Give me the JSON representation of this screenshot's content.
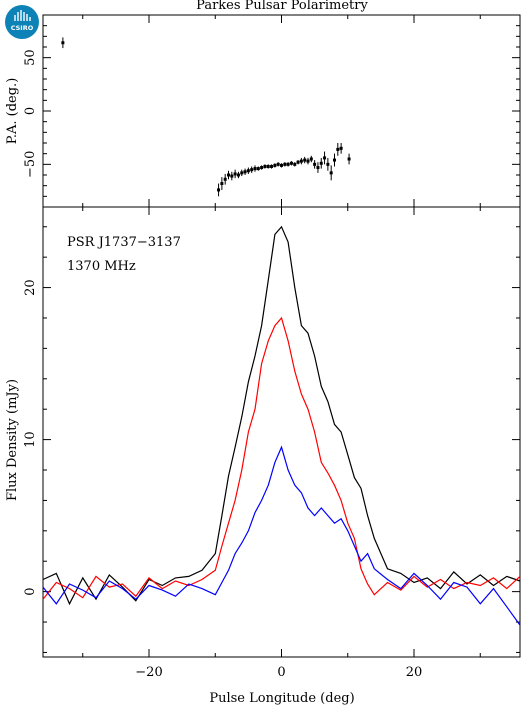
{
  "logo": {
    "text": "CSIRO",
    "color": "#0d82b6"
  },
  "chart_data": [
    {
      "type": "scatter",
      "title": "Parkes Pulsar Polarimetry",
      "ylabel": "P.A. (deg.)",
      "xlim": [
        -36,
        36
      ],
      "ylim": [
        -90,
        90
      ],
      "yticks": [
        -50,
        0,
        50
      ],
      "series": [
        {
          "values": [
            [
              -33.0,
              64,
              5
            ],
            [
              -9.5,
              -74,
              6
            ],
            [
              -9.0,
              -68,
              6
            ],
            [
              -8.5,
              -64,
              5
            ],
            [
              -8.0,
              -60,
              4
            ],
            [
              -7.5,
              -61,
              4
            ],
            [
              -7.0,
              -59,
              4
            ],
            [
              -6.5,
              -60,
              3
            ],
            [
              -6.0,
              -58,
              3
            ],
            [
              -5.5,
              -57,
              3
            ],
            [
              -5.0,
              -56,
              3
            ],
            [
              -4.5,
              -55,
              3
            ],
            [
              -4.0,
              -54,
              3
            ],
            [
              -3.5,
              -54,
              2
            ],
            [
              -3.0,
              -53,
              2
            ],
            [
              -2.5,
              -52,
              2
            ],
            [
              -2.0,
              -52,
              2
            ],
            [
              -1.5,
              -52,
              2
            ],
            [
              -1.0,
              -51,
              2
            ],
            [
              -0.5,
              -50,
              2
            ],
            [
              0.0,
              -51,
              2
            ],
            [
              0.5,
              -50,
              2
            ],
            [
              1.0,
              -50,
              2
            ],
            [
              1.5,
              -49,
              2
            ],
            [
              2.0,
              -50,
              2
            ],
            [
              2.5,
              -48,
              2
            ],
            [
              3.0,
              -47,
              3
            ],
            [
              3.5,
              -46,
              3
            ],
            [
              4.0,
              -47,
              3
            ],
            [
              4.5,
              -45,
              3
            ],
            [
              5.0,
              -50,
              4
            ],
            [
              5.5,
              -53,
              5
            ],
            [
              6.0,
              -49,
              5
            ],
            [
              6.5,
              -44,
              6
            ],
            [
              7.0,
              -50,
              6
            ],
            [
              7.5,
              -58,
              7
            ],
            [
              8.0,
              -46,
              6
            ],
            [
              8.5,
              -36,
              6
            ],
            [
              9.0,
              -35,
              5
            ],
            [
              10.2,
              -45,
              5
            ]
          ]
        }
      ]
    },
    {
      "type": "line",
      "xlabel": "Pulse Longitude (deg)",
      "ylabel": "Flux Density (mJy)",
      "xlim": [
        -36,
        36
      ],
      "ylim": [
        -4.3,
        25.3
      ],
      "xticks": [
        -20,
        0,
        20
      ],
      "yticks": [
        0,
        10,
        20
      ],
      "annotations": [
        "PSR J1737−3137",
        "1370 MHz"
      ],
      "series": [
        {
          "color": "#000000",
          "x": [
            -36,
            -34,
            -32,
            -30,
            -28,
            -26,
            -24,
            -22,
            -20,
            -18,
            -16,
            -14,
            -12,
            -10,
            -9,
            -8,
            -7,
            -6,
            -5,
            -4,
            -3,
            -2,
            -1,
            0,
            1,
            2,
            3,
            4,
            5,
            6,
            7,
            8,
            9,
            10,
            11,
            12,
            13,
            14,
            16,
            18,
            20,
            22,
            24,
            26,
            28,
            30,
            32,
            34,
            36
          ],
          "values": [
            0.8,
            1.2,
            -0.8,
            0.9,
            -0.5,
            1.1,
            0.3,
            -0.6,
            0.8,
            0.4,
            0.9,
            1.0,
            1.4,
            2.5,
            5.0,
            7.6,
            9.5,
            11.5,
            13.8,
            15.5,
            17.5,
            20.5,
            23.5,
            24.0,
            23.0,
            20.0,
            17.5,
            17.0,
            15.5,
            13.5,
            12.5,
            11.0,
            10.5,
            9.0,
            7.5,
            6.8,
            5.0,
            3.5,
            1.5,
            1.2,
            0.6,
            0.9,
            0.2,
            1.3,
            0.5,
            1.1,
            0.4,
            1.0,
            0.7
          ]
        },
        {
          "color": "#ff0000",
          "x": [
            -36,
            -34,
            -32,
            -30,
            -28,
            -26,
            -24,
            -22,
            -20,
            -18,
            -16,
            -14,
            -12,
            -10,
            -9,
            -8,
            -7,
            -6,
            -5,
            -4,
            -3,
            -2,
            -1,
            0,
            1,
            2,
            3,
            4,
            5,
            6,
            7,
            8,
            9,
            10,
            11,
            12,
            13,
            14,
            16,
            18,
            20,
            22,
            24,
            26,
            28,
            30,
            32,
            34,
            36
          ],
          "values": [
            -0.5,
            0.6,
            0.2,
            -0.4,
            1.0,
            0.3,
            0.5,
            -0.3,
            0.9,
            0.2,
            0.7,
            0.4,
            0.8,
            1.4,
            3.0,
            4.5,
            6.0,
            8.0,
            10.5,
            12.0,
            15.0,
            16.5,
            17.5,
            18.0,
            16.5,
            14.5,
            13.0,
            12.0,
            10.5,
            8.5,
            7.8,
            7.0,
            6.0,
            4.5,
            3.5,
            1.5,
            0.5,
            -0.2,
            0.6,
            0.1,
            1.0,
            0.3,
            0.8,
            0.2,
            0.6,
            0.4,
            0.9,
            0.2,
            1.0
          ]
        },
        {
          "color": "#0000ff",
          "x": [
            -36,
            -34,
            -32,
            -30,
            -28,
            -26,
            -24,
            -22,
            -20,
            -18,
            -16,
            -14,
            -12,
            -10,
            -9,
            -8,
            -7,
            -6,
            -5,
            -4,
            -3,
            -2,
            -1,
            0,
            1,
            2,
            3,
            4,
            5,
            6,
            7,
            8,
            9,
            10,
            11,
            12,
            13,
            14,
            16,
            18,
            20,
            22,
            24,
            26,
            28,
            30,
            32,
            34,
            36
          ],
          "values": [
            0.3,
            -0.8,
            0.5,
            0.1,
            -0.4,
            0.7,
            0.2,
            -0.5,
            0.4,
            0.1,
            -0.3,
            0.5,
            0.2,
            -0.2,
            0.6,
            1.4,
            2.5,
            3.2,
            4.0,
            5.2,
            6.0,
            7.0,
            8.5,
            9.5,
            8.0,
            7.0,
            6.5,
            5.5,
            5.0,
            5.5,
            5.0,
            4.5,
            4.8,
            4.0,
            3.0,
            2.0,
            2.5,
            1.5,
            0.8,
            0.2,
            1.2,
            0.4,
            -0.5,
            0.6,
            0.3,
            -0.8,
            0.2,
            -1.0,
            -2.2
          ]
        }
      ]
    }
  ]
}
